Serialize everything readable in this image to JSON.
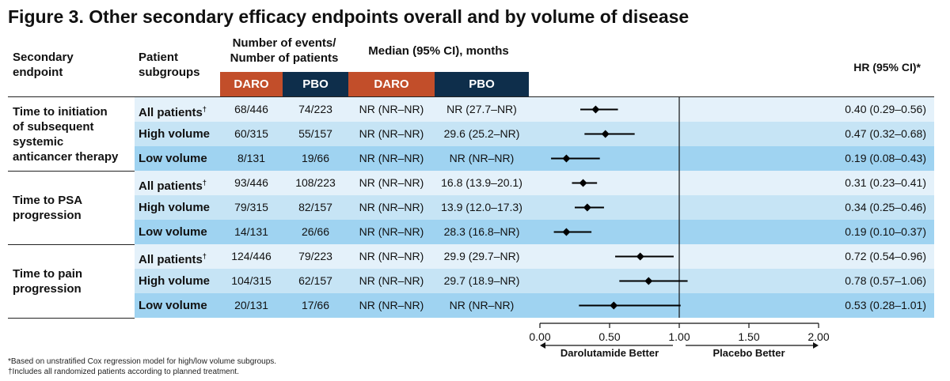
{
  "title": "Figure 3. Other secondary efficacy endpoints overall and by volume of disease",
  "headers": {
    "endpoint": [
      "Secondary",
      "endpoint"
    ],
    "subgroups": [
      "Patient",
      "subgroups"
    ],
    "events": [
      "Number of events/",
      "Number of patients"
    ],
    "median": "Median (95% CI), months",
    "hr": "HR (95% CI)*",
    "daro": "DARO",
    "pbo": "PBO"
  },
  "colors": {
    "daro": "#c24e2a",
    "pbo": "#0e2e4b",
    "band_light": "#e4f1fa",
    "band_mid": "#c6e4f5",
    "band_dark": "#9fd3f1"
  },
  "groups": [
    {
      "endpoint": [
        "Time to initiation",
        "of subsequent",
        "systemic",
        "anticancer therapy"
      ],
      "rows": [
        {
          "subgroup": "All patients",
          "dagger": true,
          "daro_events": "68/446",
          "pbo_events": "74/223",
          "daro_median": "NR (NR–NR)",
          "pbo_median": "NR (27.7–NR)",
          "hr_text": "0.40 (0.29–0.56)"
        },
        {
          "subgroup": "High volume",
          "dagger": false,
          "daro_events": "60/315",
          "pbo_events": "55/157",
          "daro_median": "NR (NR–NR)",
          "pbo_median": "29.6 (25.2–NR)",
          "hr_text": "0.47 (0.32–0.68)"
        },
        {
          "subgroup": "Low volume",
          "dagger": false,
          "daro_events": "8/131",
          "pbo_events": "19/66",
          "daro_median": "NR (NR–NR)",
          "pbo_median": "NR (NR–NR)",
          "hr_text": "0.19 (0.08–0.43)"
        }
      ]
    },
    {
      "endpoint": [
        "Time to PSA",
        "progression"
      ],
      "rows": [
        {
          "subgroup": "All patients",
          "dagger": true,
          "daro_events": "93/446",
          "pbo_events": "108/223",
          "daro_median": "NR (NR–NR)",
          "pbo_median": "16.8 (13.9–20.1)",
          "hr_text": "0.31 (0.23–0.41)"
        },
        {
          "subgroup": "High volume",
          "dagger": false,
          "daro_events": "79/315",
          "pbo_events": "82/157",
          "daro_median": "NR (NR–NR)",
          "pbo_median": "13.9 (12.0–17.3)",
          "hr_text": "0.34 (0.25–0.46)"
        },
        {
          "subgroup": "Low volume",
          "dagger": false,
          "daro_events": "14/131",
          "pbo_events": "26/66",
          "daro_median": "NR (NR–NR)",
          "pbo_median": "28.3 (16.8–NR)",
          "hr_text": "0.19 (0.10–0.37)"
        }
      ]
    },
    {
      "endpoint": [
        "Time to pain",
        "progression"
      ],
      "rows": [
        {
          "subgroup": "All patients",
          "dagger": true,
          "daro_events": "124/446",
          "pbo_events": "79/223",
          "daro_median": "NR (NR–NR)",
          "pbo_median": "29.9 (29.7–NR)",
          "hr_text": "0.72 (0.54–0.96)"
        },
        {
          "subgroup": "High volume",
          "dagger": false,
          "daro_events": "104/315",
          "pbo_events": "62/157",
          "daro_median": "NR (NR–NR)",
          "pbo_median": "29.7 (18.9–NR)",
          "hr_text": "0.78 (0.57–1.06)"
        },
        {
          "subgroup": "Low volume",
          "dagger": false,
          "daro_events": "20/131",
          "pbo_events": "17/66",
          "daro_median": "NR (NR–NR)",
          "pbo_median": "NR (NR–NR)",
          "hr_text": "0.53 (0.28–1.01)"
        }
      ]
    }
  ],
  "chart_data": {
    "type": "scatter",
    "subtype": "forest",
    "x_range": [
      0,
      2
    ],
    "x_ticks": [
      "0.00",
      "0.50",
      "1.00",
      "1.50",
      "2.00"
    ],
    "reference_line": 1.0,
    "left_label": "Darolutamide Better",
    "right_label": "Placebo Better",
    "points": [
      {
        "hr": 0.4,
        "lo": 0.29,
        "hi": 0.56
      },
      {
        "hr": 0.47,
        "lo": 0.32,
        "hi": 0.68
      },
      {
        "hr": 0.19,
        "lo": 0.08,
        "hi": 0.43
      },
      {
        "hr": 0.31,
        "lo": 0.23,
        "hi": 0.41
      },
      {
        "hr": 0.34,
        "lo": 0.25,
        "hi": 0.46
      },
      {
        "hr": 0.19,
        "lo": 0.1,
        "hi": 0.37
      },
      {
        "hr": 0.72,
        "lo": 0.54,
        "hi": 0.96
      },
      {
        "hr": 0.78,
        "lo": 0.57,
        "hi": 1.06
      },
      {
        "hr": 0.53,
        "lo": 0.28,
        "hi": 1.01
      }
    ]
  },
  "footnotes": [
    "*Based on unstratified Cox regression model for high/low volume subgroups.",
    "†Includes all randomized patients according to planned treatment."
  ]
}
